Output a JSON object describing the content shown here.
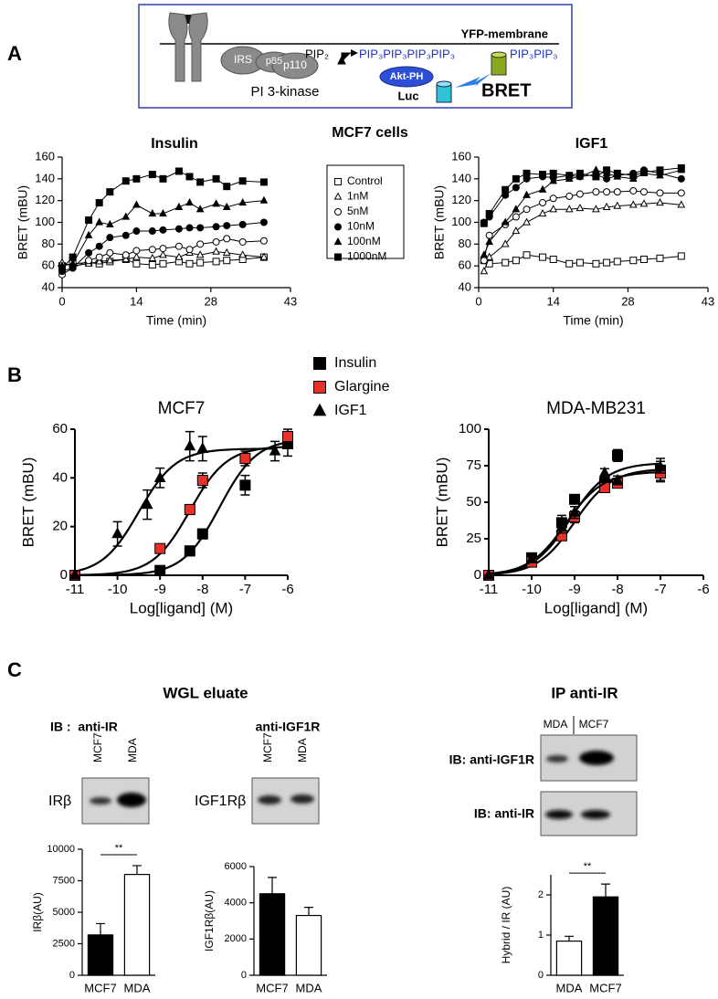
{
  "panel_labels": [
    "A",
    "B",
    "C"
  ],
  "diagram": {
    "membrane_label": "YFP-membrane",
    "irs": "IRS",
    "p85": "p85",
    "p110": "p110",
    "pip2": "PIP₂",
    "pip3_row": "PIP₃PIP₃PIP₃PIP₃",
    "pip3_right": "PIP₃PIP₃",
    "pi3k": "PI 3-kinase",
    "akt": "Akt-PH",
    "luc": "Luc",
    "bret": "BRET"
  },
  "figure_title": "MCF7 cells",
  "blots": {
    "title_left": "WGL eluate",
    "ib_ir": "IB :  anti-IR",
    "ib_igf1r": "anti-IGF1R",
    "lanes_left": [
      "MCF7",
      "MDA"
    ],
    "lanes_mid": [
      "MCF7",
      "MDA"
    ],
    "band_ir": "IRβ",
    "band_igf1r": "IGF1Rβ",
    "title_right": "IP anti-IR",
    "lanes_right": [
      "MDA",
      "MCF7"
    ],
    "ib_right_top": "IB: anti-IGF1R",
    "ib_right_bottom": "IB: anti-IR"
  },
  "chart_data": [
    {
      "type": "line",
      "title": "Insulin",
      "x_label": "Time (min)",
      "y_label": "BRET (mBU)",
      "xlim": [
        0,
        43
      ],
      "xticks": [
        0,
        14,
        28,
        43
      ],
      "ylim": [
        40,
        160
      ],
      "yticks": [
        40,
        60,
        80,
        100,
        120,
        140,
        160
      ],
      "legend": "right",
      "x": [
        0,
        2,
        5,
        7,
        9,
        12,
        14,
        17,
        19,
        22,
        24,
        26,
        29,
        31,
        34,
        38
      ],
      "series": [
        {
          "name": "Control",
          "color": "#000000",
          "marker": "square",
          "filled": false,
          "values": [
            60,
            62,
            63,
            62,
            64,
            66,
            62,
            61,
            62,
            64,
            62,
            63,
            64,
            65,
            66,
            68
          ]
        },
        {
          "name": "1nM",
          "color": "#000000",
          "marker": "triangle",
          "filled": false,
          "values": [
            63,
            60,
            62,
            64,
            65,
            66,
            68,
            67,
            70,
            68,
            72,
            70,
            73,
            72,
            70,
            68
          ]
        },
        {
          "name": "5nM",
          "color": "#000000",
          "marker": "circle",
          "filled": false,
          "values": [
            52,
            58,
            65,
            68,
            72,
            70,
            74,
            75,
            76,
            78,
            75,
            80,
            82,
            85,
            82,
            83
          ]
        },
        {
          "name": "10nM",
          "color": "#000000",
          "marker": "circle",
          "filled": true,
          "values": [
            55,
            58,
            72,
            78,
            86,
            88,
            92,
            92,
            93,
            94,
            95,
            95,
            96,
            97,
            98,
            100
          ]
        },
        {
          "name": "100nM",
          "color": "#000000",
          "marker": "triangle",
          "filled": true,
          "values": [
            60,
            62,
            88,
            100,
            98,
            105,
            116,
            108,
            108,
            114,
            118,
            112,
            117,
            114,
            118,
            120
          ]
        },
        {
          "name": "1000nM",
          "color": "#000000",
          "marker": "square",
          "filled": true,
          "values": [
            58,
            68,
            102,
            118,
            128,
            138,
            140,
            144,
            140,
            147,
            142,
            137,
            140,
            133,
            138,
            137
          ]
        }
      ]
    },
    {
      "type": "line",
      "title": "IGF1",
      "x_label": "Time (min)",
      "y_label": "BRET (mBU)",
      "xlim": [
        0,
        43
      ],
      "xticks": [
        0,
        14,
        28,
        43
      ],
      "ylim": [
        40,
        160
      ],
      "yticks": [
        40,
        60,
        80,
        100,
        120,
        140,
        160
      ],
      "x": [
        1,
        2,
        5,
        7,
        9,
        12,
        14,
        17,
        19,
        22,
        24,
        26,
        29,
        31,
        34,
        38
      ],
      "series": [
        {
          "color": "#000000",
          "marker": "square",
          "filled": false,
          "values": [
            65,
            62,
            63,
            65,
            70,
            68,
            66,
            62,
            63,
            62,
            63,
            64,
            65,
            66,
            67,
            69
          ]
        },
        {
          "color": "#000000",
          "marker": "triangle",
          "filled": false,
          "values": [
            55,
            68,
            80,
            92,
            100,
            108,
            112,
            112,
            113,
            112,
            114,
            115,
            116,
            117,
            118,
            116
          ]
        },
        {
          "color": "#000000",
          "marker": "circle",
          "filled": false,
          "values": [
            65,
            88,
            98,
            105,
            112,
            118,
            122,
            124,
            126,
            128,
            128,
            128,
            129,
            128,
            127,
            127
          ]
        },
        {
          "color": "#000000",
          "marker": "circle",
          "filled": true,
          "values": [
            100,
            105,
            125,
            132,
            140,
            142,
            141,
            143,
            142,
            144,
            140,
            143,
            145,
            148,
            145,
            140
          ]
        },
        {
          "color": "#000000",
          "marker": "triangle",
          "filled": true,
          "values": [
            70,
            82,
            100,
            112,
            125,
            130,
            138,
            140,
            142,
            148,
            145,
            142,
            140,
            145,
            143,
            148
          ]
        },
        {
          "color": "#000000",
          "marker": "square",
          "filled": true,
          "values": [
            99,
            108,
            130,
            140,
            145,
            144,
            145,
            143,
            145,
            142,
            148,
            145,
            143,
            146,
            148,
            150
          ]
        }
      ]
    },
    {
      "type": "scatter",
      "title": "MCF7",
      "x_label": "Log[ligand] (M)",
      "y_label": "BRET (mBU)",
      "xlim": [
        -11,
        -6
      ],
      "xticks": [
        -11,
        -10,
        -9,
        -8,
        -7,
        -6
      ],
      "ylim": [
        0,
        60
      ],
      "yticks": [
        0,
        20,
        40,
        60
      ],
      "legend": "top",
      "series": [
        {
          "name": "Insulin",
          "color": "#000000",
          "marker": "square",
          "x": [
            -11,
            -9,
            -8.3,
            -8,
            -7,
            -6
          ],
          "values": [
            0,
            2,
            10,
            17,
            37,
            54
          ],
          "errors": [
            0,
            1,
            2,
            2,
            4,
            5
          ],
          "fit": {
            "top": 56,
            "logec50": -7.6
          }
        },
        {
          "name": "Glargine",
          "color": "#e8302a",
          "marker": "square",
          "x": [
            -11,
            -9,
            -8.3,
            -8,
            -7,
            -6
          ],
          "values": [
            0,
            11,
            27,
            39,
            48,
            57
          ],
          "errors": [
            0,
            1,
            2,
            3,
            3,
            3
          ],
          "fit": {
            "top": 53,
            "logec50": -8.3
          }
        },
        {
          "name": "IGF1",
          "color": "#000000",
          "marker": "triangle",
          "x": [
            -11,
            -10,
            -9.3,
            -9,
            -8.3,
            -8,
            -6.3
          ],
          "values": [
            0,
            17,
            29,
            40,
            53,
            52,
            51
          ],
          "errors": [
            0,
            5,
            6,
            4,
            6,
            5,
            4
          ],
          "fit": {
            "top": 52,
            "logec50": -9.5
          }
        }
      ]
    },
    {
      "type": "scatter",
      "title": "MDA-MB231",
      "x_label": "Log[ligand] (M)",
      "y_label": "BRET (mBU)",
      "xlim": [
        -11,
        -6
      ],
      "xticks": [
        -11,
        -10,
        -9,
        -8,
        -7,
        -6
      ],
      "ylim": [
        0,
        100
      ],
      "yticks": [
        0,
        25,
        50,
        75,
        100
      ],
      "series": [
        {
          "color": "#000000",
          "marker": "square",
          "x": [
            -11,
            -10,
            -9.3,
            -9,
            -8.3,
            -8,
            -7
          ],
          "values": [
            0,
            12,
            36,
            52,
            63,
            82,
            72
          ],
          "errors": [
            0,
            2,
            5,
            3,
            4,
            4,
            8
          ],
          "fit": {
            "top": 77,
            "logec50": -9.1
          }
        },
        {
          "color": "#e8302a",
          "marker": "square",
          "x": [
            -11,
            -10,
            -9.3,
            -9,
            -8.3,
            -8,
            -7
          ],
          "values": [
            0,
            9,
            27,
            40,
            60,
            63,
            70
          ],
          "errors": [
            0,
            2,
            3,
            4,
            3,
            3,
            5
          ],
          "fit": {
            "top": 73,
            "logec50": -9.0
          }
        },
        {
          "color": "#000000",
          "marker": "triangle",
          "x": [
            -11,
            -10,
            -9.3,
            -9,
            -8.3,
            -8,
            -7
          ],
          "values": [
            0,
            11,
            33,
            43,
            70,
            65,
            74
          ],
          "errors": [
            0,
            2,
            4,
            4,
            3,
            3,
            4
          ],
          "fit": {
            "top": 71,
            "logec50": -9.2
          }
        }
      ]
    },
    {
      "type": "bar",
      "y_label": "IRβ(AU)",
      "categories": [
        "MCF7",
        "MDA"
      ],
      "values": [
        3200,
        8000
      ],
      "errors": [
        900,
        700
      ],
      "colors": [
        "#000000",
        "#ffffff"
      ],
      "ylim": [
        0,
        10000
      ],
      "yticks": [
        0,
        2500,
        5000,
        7500,
        10000
      ],
      "annotation": "**"
    },
    {
      "type": "bar",
      "y_label": "IGF1Rβ(AU)",
      "categories": [
        "MCF7",
        "MDA"
      ],
      "values": [
        4500,
        3300
      ],
      "errors": [
        900,
        450
      ],
      "colors": [
        "#000000",
        "#ffffff"
      ],
      "ylim": [
        0,
        6000
      ],
      "yticks": [
        0,
        2000,
        4000,
        6000
      ]
    },
    {
      "type": "bar",
      "y_label": "Hybrid / IR (AU)",
      "categories": [
        "MDA",
        "MCF7"
      ],
      "values": [
        0.85,
        1.95
      ],
      "errors": [
        0.12,
        0.32
      ],
      "colors": [
        "#ffffff",
        "#000000"
      ],
      "ylim": [
        0,
        2.5
      ],
      "yticks": [
        0,
        1,
        2
      ],
      "annotation": "**"
    }
  ]
}
